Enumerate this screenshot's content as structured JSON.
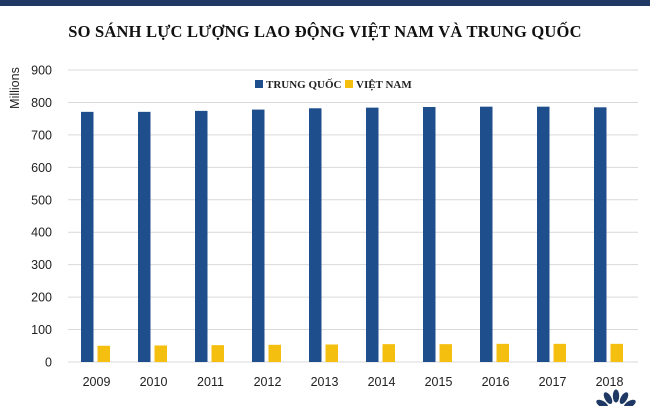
{
  "colors": {
    "china": "#1f4e8c",
    "vietnam": "#f5bf0f",
    "topbar": "#1f3864",
    "logo": "#1f3864"
  },
  "logo": {
    "icon": "peacock-logo-icon"
  },
  "chart_data": {
    "type": "bar",
    "title": "SO SÁNH LỰC LƯỢNG LAO ĐỘNG VIỆT NAM VÀ TRUNG QUỐC",
    "xlabel": "",
    "ylabel": "Millions",
    "categories": [
      "2009",
      "2010",
      "2011",
      "2012",
      "2013",
      "2014",
      "2015",
      "2016",
      "2017",
      "2018"
    ],
    "ylim": [
      0,
      900
    ],
    "yticks": [
      0,
      100,
      200,
      300,
      400,
      500,
      600,
      700,
      800,
      900
    ],
    "grid": true,
    "legend_position": "top-center",
    "series": [
      {
        "name": "TRUNG QUỐC",
        "color": "#1f4e8c",
        "values": [
          771,
          771,
          774,
          778,
          782,
          784,
          786,
          787,
          787,
          785
        ]
      },
      {
        "name": "VIỆT NAM",
        "color": "#f5bf0f",
        "values": [
          50,
          51,
          52,
          53,
          54,
          55,
          55,
          56,
          56,
          56
        ]
      }
    ]
  }
}
